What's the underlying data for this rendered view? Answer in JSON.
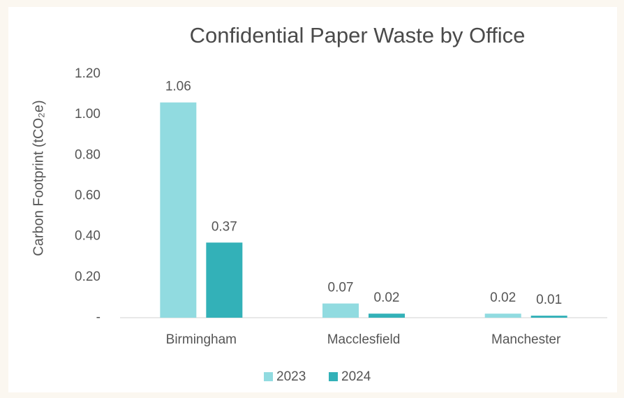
{
  "chart_data": {
    "type": "bar",
    "title": "Confidential Paper Waste by Office",
    "y_label": "Carbon Footprint (tCO₂e)",
    "categories": [
      "Birmingham",
      "Macclesfield",
      "Manchester"
    ],
    "series": [
      {
        "name": "2023",
        "color": "#91dbe0",
        "values": [
          1.06,
          0.07,
          0.02
        ]
      },
      {
        "name": "2024",
        "color": "#33b1b8",
        "values": [
          0.37,
          0.02,
          0.01
        ]
      }
    ],
    "ylim": [
      0,
      1.2
    ],
    "yticks": [
      {
        "value": 0,
        "label": "-"
      },
      {
        "value": 0.2,
        "label": "0.20"
      },
      {
        "value": 0.4,
        "label": "0.40"
      },
      {
        "value": 0.6,
        "label": "0.60"
      },
      {
        "value": 0.8,
        "label": "0.80"
      },
      {
        "value": 1.0,
        "label": "1.00"
      },
      {
        "value": 1.2,
        "label": "1.20"
      }
    ],
    "grid": false,
    "legend": "bottom"
  }
}
